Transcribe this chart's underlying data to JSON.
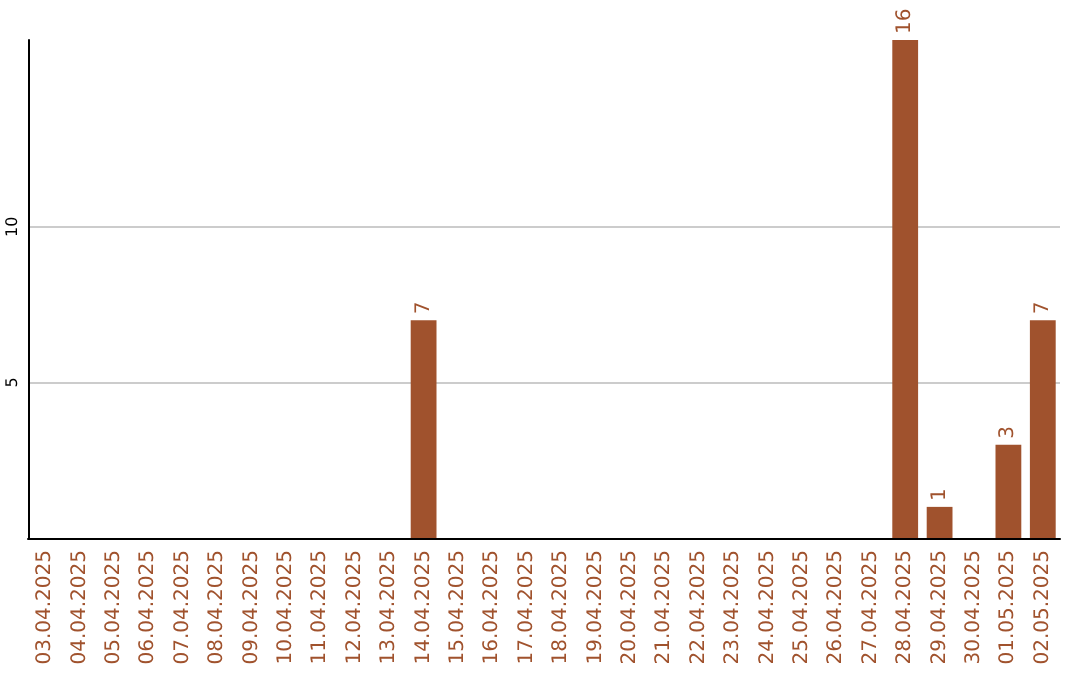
{
  "chart_data": {
    "type": "bar",
    "categories": [
      "03.04.2025",
      "04.04.2025",
      "05.04.2025",
      "06.04.2025",
      "07.04.2025",
      "08.04.2025",
      "09.04.2025",
      "10.04.2025",
      "11.04.2025",
      "12.04.2025",
      "13.04.2025",
      "14.04.2025",
      "15.04.2025",
      "16.04.2025",
      "17.04.2025",
      "18.04.2025",
      "19.04.2025",
      "20.04.2025",
      "21.04.2025",
      "22.04.2025",
      "23.04.2025",
      "24.04.2025",
      "25.04.2025",
      "26.04.2025",
      "27.04.2025",
      "28.04.2025",
      "29.04.2025",
      "30.04.2025",
      "01.05.2025",
      "02.05.2025"
    ],
    "values": [
      0,
      0,
      0,
      0,
      0,
      0,
      0,
      0,
      0,
      0,
      0,
      7,
      0,
      0,
      0,
      0,
      0,
      0,
      0,
      0,
      0,
      0,
      0,
      0,
      0,
      16,
      1,
      0,
      3,
      7
    ],
    "value_labels": [
      null,
      null,
      null,
      null,
      null,
      null,
      null,
      null,
      null,
      null,
      null,
      "7",
      null,
      null,
      null,
      null,
      null,
      null,
      null,
      null,
      null,
      null,
      null,
      null,
      null,
      "16",
      "1",
      null,
      "3",
      "7"
    ],
    "color": "#a0522d",
    "ylim": [
      0,
      16
    ],
    "yticks": [
      5,
      10
    ],
    "grid": "y"
  }
}
